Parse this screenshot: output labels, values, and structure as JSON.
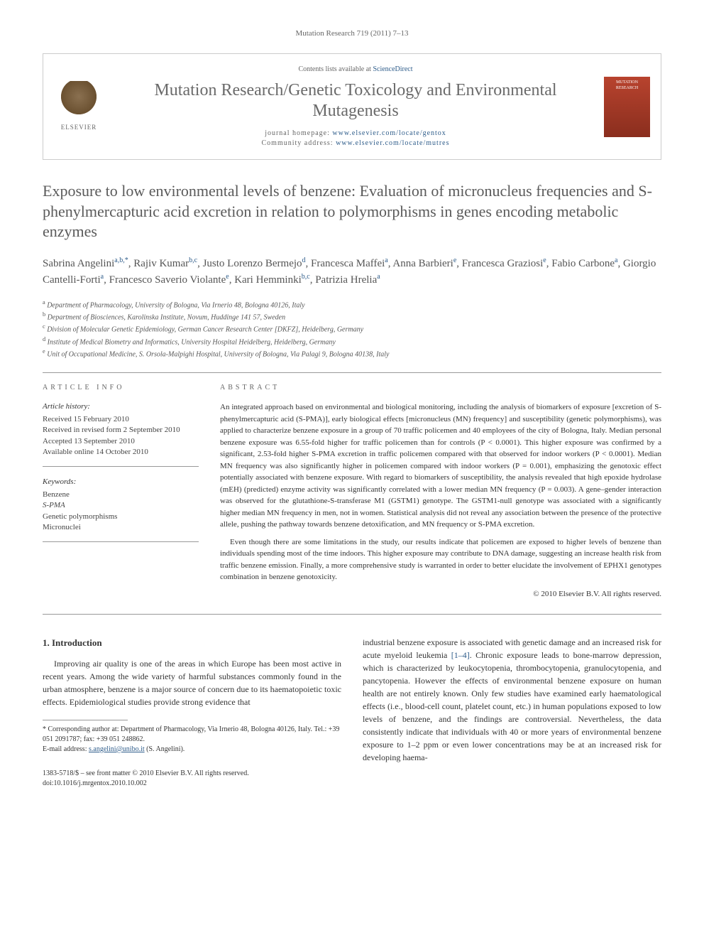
{
  "running_head": "Mutation Research 719 (2011) 7–13",
  "header": {
    "contents_prefix": "Contents lists available at ",
    "contents_link": "ScienceDirect",
    "journal_name": "Mutation Research/Genetic Toxicology and Environmental Mutagenesis",
    "homepage_label": "journal homepage: ",
    "homepage_url": "www.elsevier.com/locate/gentox",
    "community_label": "Community address: ",
    "community_url": "www.elsevier.com/locate/mutres",
    "publisher": "ELSEVIER"
  },
  "title": "Exposure to low environmental levels of benzene: Evaluation of micronucleus frequencies and S-phenylmercapturic acid excretion in relation to polymorphisms in genes encoding metabolic enzymes",
  "authors_html": "Sabrina Angelini<sup>a,b,*</sup>, Rajiv Kumar<sup>b,c</sup>, Justo Lorenzo Bermejo<sup>d</sup>, Francesca Maffei<sup>a</sup>, Anna Barbieri<sup>e</sup>, Francesca Graziosi<sup>e</sup>, Fabio Carbone<sup>a</sup>, Giorgio Cantelli-Forti<sup>a</sup>, Francesco Saverio Violante<sup>e</sup>, Kari Hemminki<sup>b,c</sup>, Patrizia Hrelia<sup>a</sup>",
  "affiliations": [
    {
      "sup": "a",
      "text": "Department of Pharmacology, University of Bologna, Via Irnerio 48, Bologna 40126, Italy"
    },
    {
      "sup": "b",
      "text": "Department of Biosciences, Karolinska Institute, Novum, Huddinge 141 57, Sweden"
    },
    {
      "sup": "c",
      "text": "Division of Molecular Genetic Epidemiology, German Cancer Research Center [DKFZ], Heidelberg, Germany"
    },
    {
      "sup": "d",
      "text": "Institute of Medical Biometry and Informatics, University Hospital Heidelberg, Heidelberg, Germany"
    },
    {
      "sup": "e",
      "text": "Unit of Occupational Medicine, S. Orsola-Malpighi Hospital, University of Bologna, Via Palagi 9, Bologna 40138, Italy"
    }
  ],
  "article_info": {
    "heading": "ARTICLE INFO",
    "history_label": "Article history:",
    "history": [
      "Received 15 February 2010",
      "Received in revised form 2 September 2010",
      "Accepted 13 September 2010",
      "Available online 14 October 2010"
    ],
    "keywords_label": "Keywords:",
    "keywords": [
      "Benzene",
      "S-PMA",
      "Genetic polymorphisms",
      "Micronuclei"
    ]
  },
  "abstract": {
    "heading": "ABSTRACT",
    "para1": "An integrated approach based on environmental and biological monitoring, including the analysis of biomarkers of exposure [excretion of S-phenylmercapturic acid (S-PMA)], early biological effects [micronucleus (MN) frequency] and susceptibility (genetic polymorphisms), was applied to characterize benzene exposure in a group of 70 traffic policemen and 40 employees of the city of Bologna, Italy. Median personal benzene exposure was 6.55-fold higher for traffic policemen than for controls (P < 0.0001). This higher exposure was confirmed by a significant, 2.53-fold higher S-PMA excretion in traffic policemen compared with that observed for indoor workers (P < 0.0001). Median MN frequency was also significantly higher in policemen compared with indoor workers (P = 0.001), emphasizing the genotoxic effect potentially associated with benzene exposure. With regard to biomarkers of susceptibility, the analysis revealed that high epoxide hydrolase (mEH) (predicted) enzyme activity was significantly correlated with a lower median MN frequency (P = 0.003). A gene–gender interaction was observed for the glutathione-S-transferase M1 (GSTM1) genotype. The GSTM1-null genotype was associated with a significantly higher median MN frequency in men, not in women. Statistical analysis did not reveal any association between the presence of the protective allele, pushing the pathway towards benzene detoxification, and MN frequency or S-PMA excretion.",
    "para2": "Even though there are some limitations in the study, our results indicate that policemen are exposed to higher levels of benzene than individuals spending most of the time indoors. This higher exposure may contribute to DNA damage, suggesting an increase health risk from traffic benzene emission. Finally, a more comprehensive study is warranted in order to better elucidate the involvement of EPHX1 genotypes combination in benzene genotoxicity.",
    "copyright": "© 2010 Elsevier B.V. All rights reserved."
  },
  "body": {
    "section_number": "1.",
    "section_title": "Introduction",
    "col1": "Improving air quality is one of the areas in which Europe has been most active in recent years. Among the wide variety of harmful substances commonly found in the urban atmosphere, benzene is a major source of concern due to its haematopoietic toxic effects. Epidemiological studies provide strong evidence that",
    "col2_pre": "industrial benzene exposure is associated with genetic damage and an increased risk for acute myeloid leukemia ",
    "col2_ref": "[1–4]",
    "col2_post": ". Chronic exposure leads to bone-marrow depression, which is characterized by leukocytopenia, thrombocytopenia, granulocytopenia, and pancytopenia. However the effects of environmental benzene exposure on human health are not entirely known. Only few studies have examined early haematological effects (i.e., blood-cell count, platelet count, etc.) in human populations exposed to low levels of benzene, and the findings are controversial. Nevertheless, the data consistently indicate that individuals with 40 or more years of environmental benzene exposure to 1–2 ppm or even lower concentrations may be at an increased risk for developing haema-"
  },
  "footnote": {
    "corresponding": "* Corresponding author at: Department of Pharmacology, Via Irnerio 48, Bologna 40126, Italy. Tel.: +39 051 2091787; fax: +39 051 248862.",
    "email_label": "E-mail address: ",
    "email": "s.angelini@unibo.it",
    "email_suffix": " (S. Angelini)."
  },
  "bottom": {
    "issn": "1383-5718/$ – see front matter © 2010 Elsevier B.V. All rights reserved.",
    "doi": "doi:10.1016/j.mrgentox.2010.10.002"
  },
  "colors": {
    "link": "#2e5c8a",
    "text": "#333333",
    "heading_gray": "#6a6a6a"
  }
}
